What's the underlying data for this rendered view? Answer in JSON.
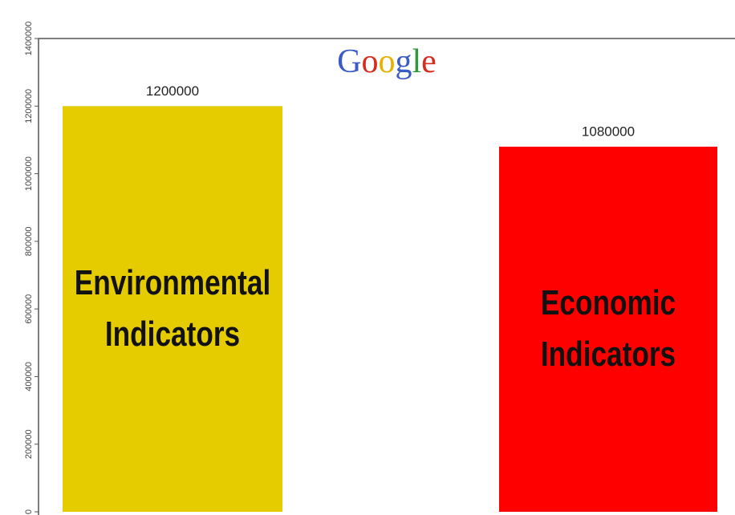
{
  "chart_data": {
    "type": "bar",
    "title": "Google",
    "categories": [
      "Environmental Indicators",
      "Economic Indicators"
    ],
    "series": [
      {
        "name": null,
        "colors": [
          "#e5cc00",
          "#ff0000"
        ],
        "values": [
          1200000,
          1080000
        ]
      }
    ],
    "ylim": [
      0,
      1400000
    ],
    "yticks": [
      0,
      200000,
      400000,
      600000,
      800000,
      1000000,
      1200000,
      1400000
    ]
  }
}
